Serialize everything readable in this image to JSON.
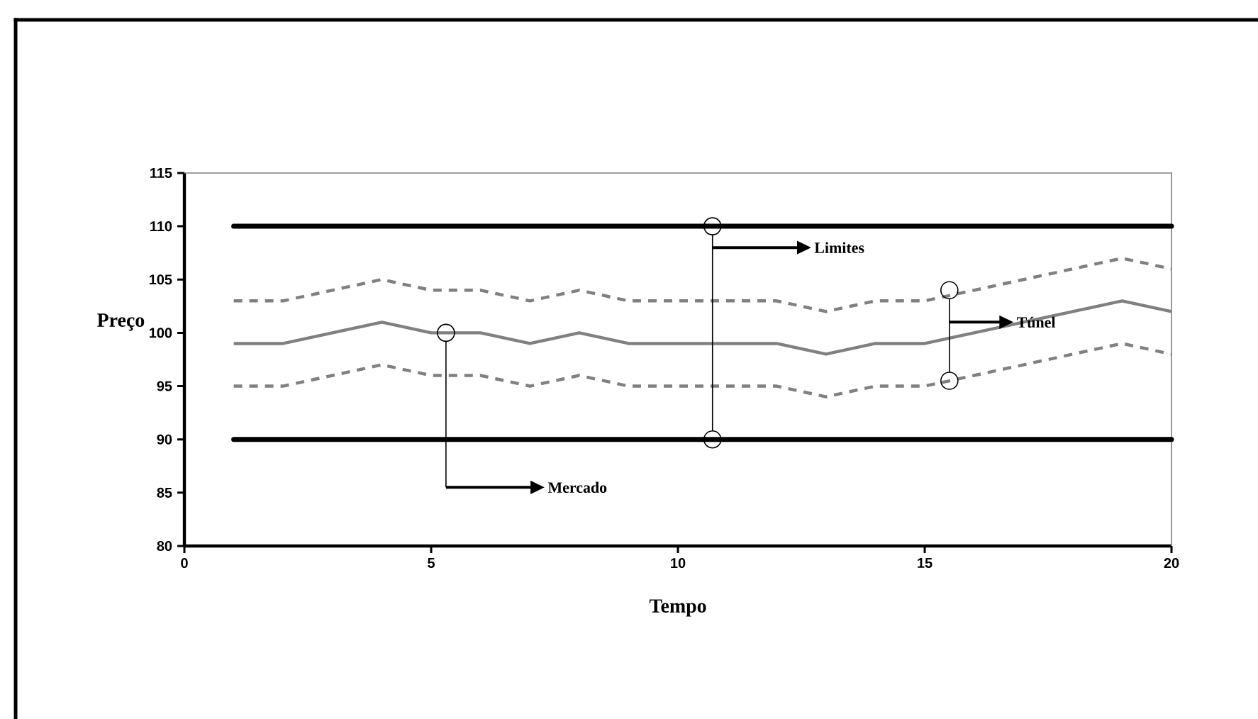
{
  "chart_data": {
    "type": "line",
    "xlabel": "Tempo",
    "ylabel": "Preço",
    "x": [
      1,
      2,
      3,
      4,
      5,
      6,
      7,
      8,
      9,
      10,
      11,
      12,
      13,
      14,
      15,
      16,
      17,
      18,
      19,
      20
    ],
    "series": [
      {
        "color": "#808080",
        "line_style": "solid",
        "values": [
          99,
          99,
          100,
          101,
          100,
          100,
          99,
          100,
          99,
          99,
          99,
          99,
          98,
          99,
          99,
          100,
          101,
          102,
          103,
          102
        ]
      },
      {
        "color": "#808080",
        "line_style": "dashed",
        "values": [
          103,
          103,
          104,
          105,
          104,
          104,
          103,
          104,
          103,
          103,
          103,
          103,
          102,
          103,
          103,
          104,
          105,
          106,
          107,
          106
        ]
      },
      {
        "color": "#808080",
        "line_style": "dashed",
        "values": [
          95,
          95,
          96,
          97,
          96,
          96,
          95,
          96,
          95,
          95,
          95,
          95,
          94,
          95,
          95,
          96,
          97,
          98,
          99,
          98
        ]
      }
    ],
    "ref_lines": [
      {
        "axis": "y",
        "value": 110,
        "color": "#000000"
      },
      {
        "axis": "y",
        "value": 90,
        "color": "#000000"
      }
    ],
    "annotations": [
      "Mercado",
      "Limites",
      "Túnel"
    ],
    "xlim": [
      0,
      20
    ],
    "ylim": [
      80,
      115
    ],
    "xticks": [
      0,
      5,
      10,
      15,
      20
    ],
    "yticks": [
      80,
      85,
      90,
      95,
      100,
      105,
      110,
      115
    ],
    "grid": false,
    "marker": "none"
  }
}
